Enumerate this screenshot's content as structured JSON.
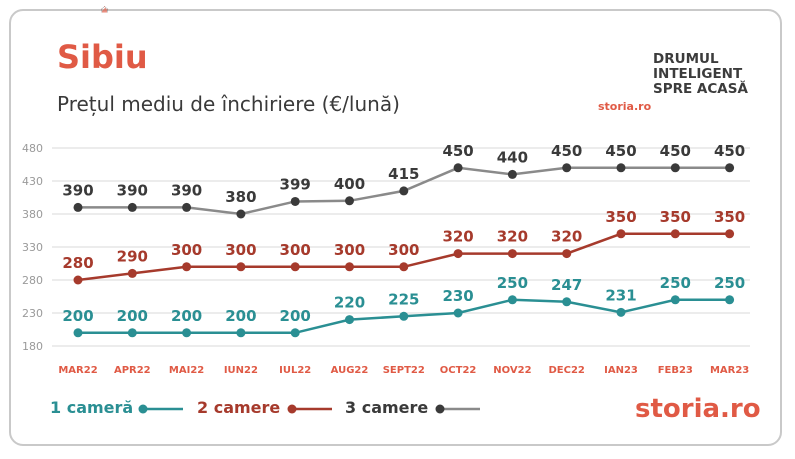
{
  "header": {
    "title": "Sibiu",
    "subtitle": "Prețul mediu de închiriere (€/lună)"
  },
  "brand": {
    "tagline_1": "DRUMUL",
    "tagline_2": "INTELIGENT",
    "tagline_3": "SPRE ACASĂ",
    "logo_small": "storia.ro",
    "logo_bottom_a": "storia",
    "logo_bottom_b": ".ro"
  },
  "colors": {
    "one_room": "#2a8f93",
    "two_rooms": "#a63a2c",
    "three_rooms": "#8a8a8a",
    "three_rooms_dot": "#3a3a3a",
    "accent": "#e05a45",
    "grid": "#d9d9d9"
  },
  "chart_data": {
    "type": "line",
    "title": "Prețul mediu de închiriere (€/lună)",
    "categories": [
      "MAR22",
      "APR22",
      "MAI22",
      "IUN22",
      "IUL22",
      "AUG22",
      "SEPT22",
      "OCT22",
      "NOV22",
      "DEC22",
      "IAN23",
      "FEB23",
      "MAR23"
    ],
    "yticks": [
      180,
      230,
      280,
      330,
      380,
      430,
      480
    ],
    "ylim": [
      180,
      480
    ],
    "grid": true,
    "legend": "bottom-left",
    "series": [
      {
        "name": "1 cameră",
        "values": [
          200,
          200,
          200,
          200,
          200,
          220,
          225,
          230,
          250,
          247,
          231,
          250,
          250
        ]
      },
      {
        "name": "2 camere",
        "values": [
          280,
          290,
          300,
          300,
          300,
          300,
          300,
          320,
          320,
          320,
          350,
          350,
          350
        ]
      },
      {
        "name": "3 camere",
        "values": [
          390,
          390,
          390,
          380,
          399,
          400,
          415,
          450,
          440,
          450,
          450,
          450,
          450
        ]
      }
    ]
  }
}
